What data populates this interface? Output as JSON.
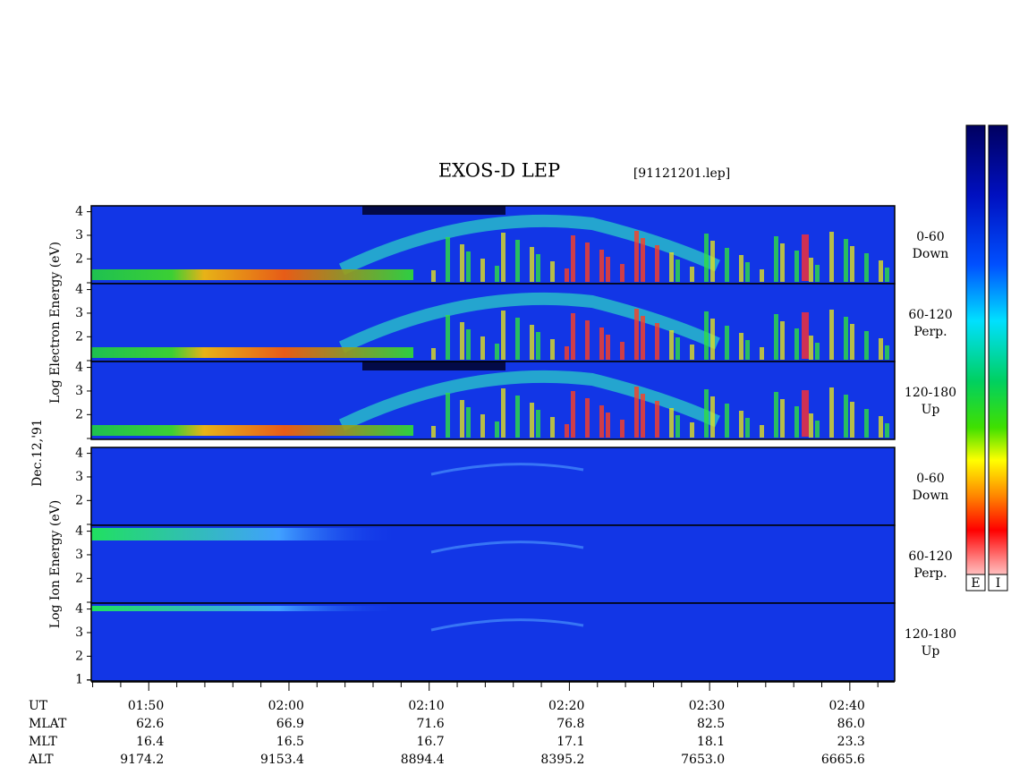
{
  "title": "EXOS-D LEP",
  "file": "[91121201.lep]",
  "date": "Dec.12,'91",
  "groups": [
    {
      "label": "Log  Electron  Energy (eV)",
      "panels": [
        {
          "label": [
            "0-60",
            "Down"
          ],
          "ylim": [
            0.95,
            4.25
          ],
          "yticks": [
            2,
            3,
            4
          ]
        },
        {
          "label": [
            "60-120",
            "Perp."
          ],
          "ylim": [
            0.95,
            4.25
          ],
          "yticks": [
            2,
            3,
            4
          ]
        },
        {
          "label": [
            "120-180",
            "Up"
          ],
          "ylim": [
            0.95,
            4.25
          ],
          "yticks": [
            2,
            3,
            4
          ]
        }
      ]
    },
    {
      "label": "Log  Ion  Energy (eV)",
      "panels": [
        {
          "label": [
            "0-60",
            "Down"
          ],
          "ylim": [
            0.95,
            4.25
          ],
          "yticks": [
            2,
            3,
            4
          ]
        },
        {
          "label": [
            "60-120",
            "Perp."
          ],
          "ylim": [
            0.95,
            4.25
          ],
          "yticks": [
            2,
            3,
            4
          ]
        },
        {
          "label": [
            "120-180",
            "Up"
          ],
          "ylim": [
            0.95,
            4.25
          ],
          "yticks": [
            1,
            2,
            3,
            4
          ]
        }
      ]
    }
  ],
  "xaxis": {
    "xlim": [
      105.9,
      163.2
    ],
    "ticks": [
      {
        "value": 110,
        "label": "01:50"
      },
      {
        "value": 120,
        "label": "02:00"
      },
      {
        "value": 130,
        "label": "02:10"
      },
      {
        "value": 140,
        "label": "02:20"
      },
      {
        "value": 150,
        "label": "02:30"
      },
      {
        "value": 160,
        "label": "02:40"
      }
    ],
    "minor_ticks": [
      106,
      108,
      112,
      114,
      116,
      118,
      122,
      124,
      126,
      128,
      132,
      134,
      136,
      138,
      142,
      144,
      146,
      148,
      152,
      154,
      156,
      158,
      162
    ]
  },
  "ephemeris": [
    {
      "label": "UT"
    },
    {
      "label": "MLAT",
      "values": [
        "62.6",
        "66.9",
        "71.6",
        "76.8",
        "82.5",
        "86.0"
      ]
    },
    {
      "label": "MLT",
      "values": [
        "16.4",
        "16.5",
        "16.7",
        "17.1",
        "18.1",
        "23.3"
      ]
    },
    {
      "label": "ALT",
      "values": [
        "9174.2",
        "9153.4",
        "8894.4",
        "8395.2",
        "7653.0",
        "6665.6"
      ]
    }
  ],
  "colorbars": [
    "E",
    "I"
  ]
}
